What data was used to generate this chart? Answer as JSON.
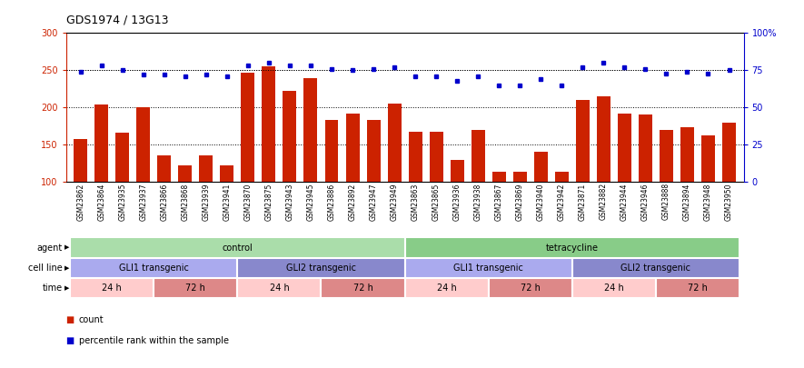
{
  "title": "GDS1974 / 13G13",
  "samples": [
    "GSM23862",
    "GSM23864",
    "GSM23935",
    "GSM23937",
    "GSM23866",
    "GSM23868",
    "GSM23939",
    "GSM23941",
    "GSM23870",
    "GSM23875",
    "GSM23943",
    "GSM23945",
    "GSM23886",
    "GSM23892",
    "GSM23947",
    "GSM23949",
    "GSM23863",
    "GSM23865",
    "GSM23936",
    "GSM23938",
    "GSM23867",
    "GSM23869",
    "GSM23940",
    "GSM23942",
    "GSM23871",
    "GSM23882",
    "GSM23944",
    "GSM23946",
    "GSM23888",
    "GSM23894",
    "GSM23948",
    "GSM23950"
  ],
  "counts": [
    158,
    204,
    166,
    200,
    135,
    122,
    135,
    122,
    247,
    255,
    222,
    240,
    183,
    192,
    183,
    205,
    167,
    167,
    130,
    170,
    114,
    114,
    140,
    113,
    210,
    215,
    192,
    190,
    170,
    173,
    163,
    180
  ],
  "percentiles": [
    74,
    78,
    75,
    72,
    72,
    71,
    72,
    71,
    78,
    80,
    78,
    78,
    76,
    75,
    76,
    77,
    71,
    71,
    68,
    71,
    65,
    65,
    69,
    65,
    77,
    80,
    77,
    76,
    73,
    74,
    73,
    75
  ],
  "bar_color": "#cc2200",
  "dot_color": "#0000cc",
  "ylim_left": [
    100,
    300
  ],
  "ylim_right": [
    0,
    100
  ],
  "yticks_left": [
    100,
    150,
    200,
    250,
    300
  ],
  "yticks_right": [
    0,
    25,
    50,
    75,
    100
  ],
  "agent_groups": [
    {
      "label": "control",
      "start": 0,
      "end": 16,
      "color": "#aaddaa"
    },
    {
      "label": "tetracycline",
      "start": 16,
      "end": 32,
      "color": "#88cc88"
    }
  ],
  "cell_line_groups": [
    {
      "label": "GLI1 transgenic",
      "start": 0,
      "end": 8,
      "color": "#aaaaee"
    },
    {
      "label": "GLI2 transgenic",
      "start": 8,
      "end": 16,
      "color": "#8888cc"
    },
    {
      "label": "GLI1 transgenic",
      "start": 16,
      "end": 24,
      "color": "#aaaaee"
    },
    {
      "label": "GLI2 transgenic",
      "start": 24,
      "end": 32,
      "color": "#8888cc"
    }
  ],
  "time_groups": [
    {
      "label": "24 h",
      "start": 0,
      "end": 4,
      "color": "#ffcccc"
    },
    {
      "label": "72 h",
      "start": 4,
      "end": 8,
      "color": "#dd8888"
    },
    {
      "label": "24 h",
      "start": 8,
      "end": 12,
      "color": "#ffcccc"
    },
    {
      "label": "72 h",
      "start": 12,
      "end": 16,
      "color": "#dd8888"
    },
    {
      "label": "24 h",
      "start": 16,
      "end": 20,
      "color": "#ffcccc"
    },
    {
      "label": "72 h",
      "start": 20,
      "end": 24,
      "color": "#dd8888"
    },
    {
      "label": "24 h",
      "start": 24,
      "end": 28,
      "color": "#ffcccc"
    },
    {
      "label": "72 h",
      "start": 28,
      "end": 32,
      "color": "#dd8888"
    }
  ],
  "row_labels": [
    "agent",
    "cell line",
    "time"
  ],
  "legend_items": [
    {
      "label": "count",
      "color": "#cc2200",
      "marker": "s"
    },
    {
      "label": "percentile rank within the sample",
      "color": "#0000cc",
      "marker": "s"
    }
  ],
  "chart_bg": "white",
  "xlabel_bg": "#cccccc",
  "grid_color": "#000000",
  "title_fontsize": 9,
  "tick_fontsize": 7,
  "xlabel_fontsize": 5.5,
  "annot_fontsize": 7,
  "label_fontsize": 7
}
